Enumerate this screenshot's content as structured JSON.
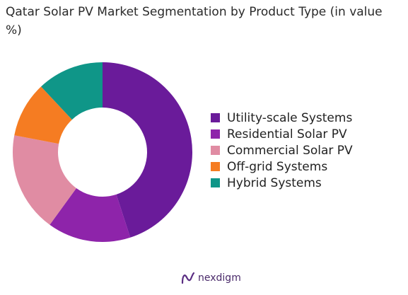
{
  "title": "Qatar Solar PV Market Segmentation by Product Type (in value %)",
  "chart_data": {
    "type": "pie",
    "donut": true,
    "title": "Qatar Solar PV Market Segmentation by Product Type (in value %)",
    "categories": [
      "Utility-scale Systems",
      "Residential Solar PV",
      "Commercial Solar PV",
      "Off-grid Systems",
      "Hybrid Systems"
    ],
    "values": [
      45,
      15,
      18,
      10,
      12
    ],
    "colors": [
      "#6a1b9a",
      "#8e24aa",
      "#e08ca3",
      "#f57c22",
      "#0f9688"
    ],
    "legend_position": "right"
  },
  "brand": {
    "name": "nexdigm",
    "logo_icon": "nexdigm-logo-icon"
  }
}
